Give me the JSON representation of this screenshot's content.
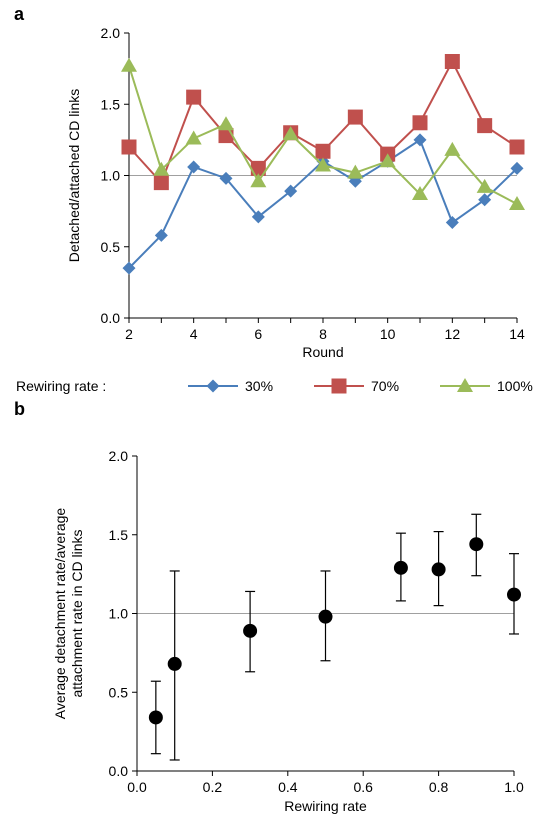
{
  "panels": {
    "a_label": "a",
    "b_label": "b"
  },
  "colors": {
    "series_30": "#4a7ebb",
    "series_70": "#c0504d",
    "series_100": "#9bbb59",
    "reference_line": "#a0a0a0",
    "axis": "#000000",
    "points": "#000000"
  },
  "chart_data": [
    {
      "type": "line",
      "xlabel": "Round",
      "ylabel": "Detached/attached CD links",
      "xlim": [
        2,
        14
      ],
      "ylim": [
        0,
        2
      ],
      "xticks": [
        "2",
        "4",
        "6",
        "8",
        "10",
        "12",
        "14"
      ],
      "yticks": [
        "0.0",
        "0.5",
        "1.0",
        "1.5",
        "2.0"
      ],
      "reference_y": 1.0,
      "legend_title": "Rewiring rate :",
      "legend_position": "bottom",
      "x": [
        2,
        3,
        4,
        5,
        6,
        7,
        8,
        9,
        10,
        11,
        12,
        13,
        14
      ],
      "series": [
        {
          "name": "30%",
          "marker": "diamond",
          "color": "#4a7ebb",
          "values": [
            0.35,
            0.58,
            1.06,
            0.98,
            0.71,
            0.89,
            1.1,
            0.96,
            1.1,
            1.25,
            0.67,
            0.83,
            1.05
          ]
        },
        {
          "name": "70%",
          "marker": "square",
          "color": "#c0504d",
          "values": [
            1.2,
            0.95,
            1.55,
            1.28,
            1.05,
            1.3,
            1.17,
            1.41,
            1.15,
            1.37,
            1.8,
            1.35,
            1.2
          ]
        },
        {
          "name": "100%",
          "marker": "triangle",
          "color": "#9bbb59",
          "values": [
            1.77,
            1.04,
            1.26,
            1.36,
            0.96,
            1.29,
            1.07,
            1.02,
            1.1,
            0.87,
            1.18,
            0.92,
            0.8
          ]
        }
      ]
    },
    {
      "type": "scatter",
      "xlabel": "Rewiring rate",
      "ylabel_lines": [
        "Average detachment rate/average",
        "attachment rate in CD links"
      ],
      "xlim": [
        0,
        1
      ],
      "ylim": [
        0,
        2
      ],
      "xticks": [
        "0.0",
        "0.2",
        "0.4",
        "0.6",
        "0.8",
        "1.0"
      ],
      "yticks": [
        "0.0",
        "0.5",
        "1.0",
        "1.5",
        "2.0"
      ],
      "reference_y": 1.0,
      "points": [
        {
          "x": 0.05,
          "y": 0.34,
          "err_low": 0.11,
          "err_high": 0.57
        },
        {
          "x": 0.1,
          "y": 0.68,
          "err_low": 0.07,
          "err_high": 1.27
        },
        {
          "x": 0.3,
          "y": 0.89,
          "err_low": 0.63,
          "err_high": 1.14
        },
        {
          "x": 0.5,
          "y": 0.98,
          "err_low": 0.7,
          "err_high": 1.27
        },
        {
          "x": 0.7,
          "y": 1.29,
          "err_low": 1.08,
          "err_high": 1.51
        },
        {
          "x": 0.8,
          "y": 1.28,
          "err_low": 1.05,
          "err_high": 1.52
        },
        {
          "x": 0.9,
          "y": 1.44,
          "err_low": 1.24,
          "err_high": 1.63
        },
        {
          "x": 1.0,
          "y": 1.12,
          "err_low": 0.87,
          "err_high": 1.38
        }
      ]
    }
  ]
}
